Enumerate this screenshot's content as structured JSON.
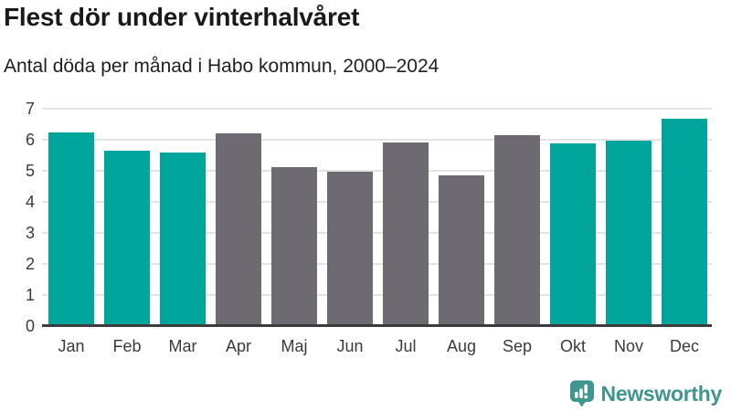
{
  "header": {
    "title": "Flest dör under vinterhalvåret",
    "subtitle": "Antal döda per månad i Habo kommun, 2000–2024"
  },
  "chart_data": {
    "type": "bar",
    "title": "Flest dör under vinterhalvåret",
    "subtitle": "Antal döda per månad i Habo kommun, 2000–2024",
    "xlabel": "",
    "ylabel": "",
    "categories": [
      "Jan",
      "Feb",
      "Mar",
      "Apr",
      "Maj",
      "Jun",
      "Jul",
      "Aug",
      "Sep",
      "Okt",
      "Nov",
      "Dec"
    ],
    "values": [
      6.24,
      5.64,
      5.6,
      6.2,
      5.12,
      4.96,
      5.92,
      4.84,
      6.16,
      5.88,
      5.96,
      6.68
    ],
    "bar_colors": [
      "winter",
      "winter",
      "winter",
      "summer",
      "summer",
      "summer",
      "summer",
      "summer",
      "summer",
      "winter",
      "winter",
      "winter"
    ],
    "palette": {
      "winter": "#00a59b",
      "summer": "#6e6a71"
    },
    "ylim": [
      0,
      7
    ],
    "yticks": [
      0,
      1,
      2,
      3,
      4,
      5,
      6,
      7
    ],
    "grid": true,
    "legend": "none"
  },
  "footer": {
    "logo_text": "Newsworthy",
    "logo_color": "#3f968f"
  }
}
